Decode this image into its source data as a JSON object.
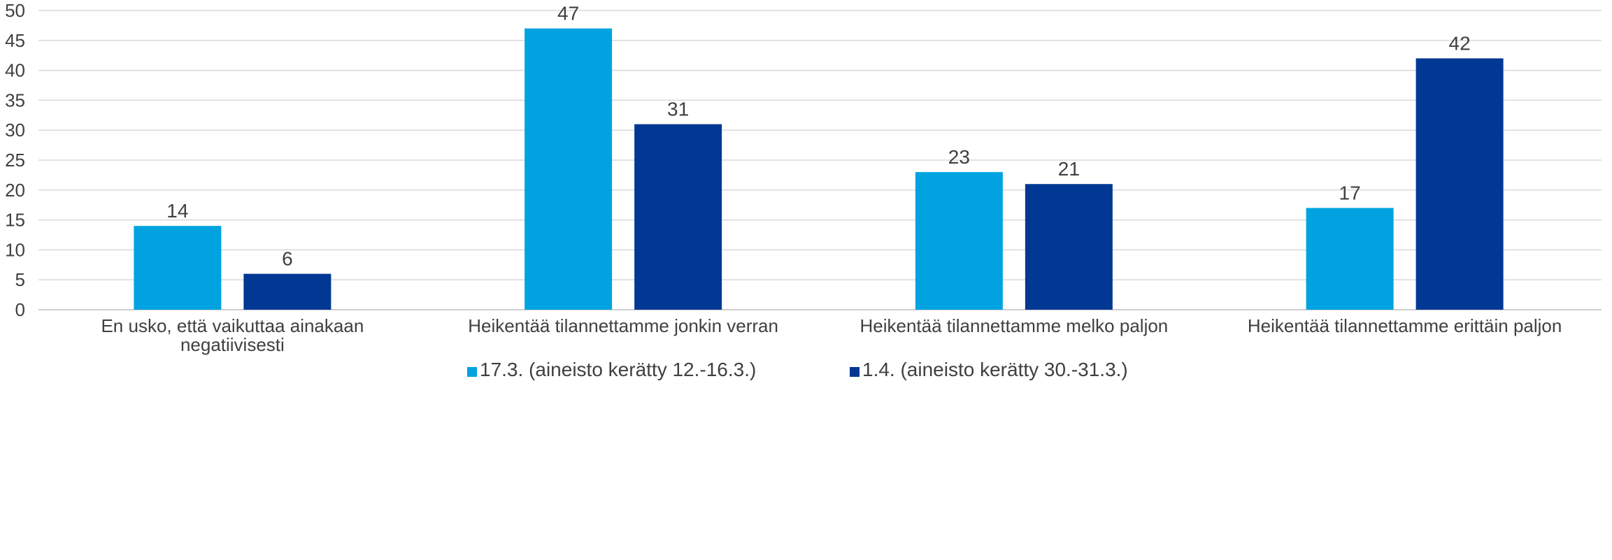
{
  "chart_data": {
    "type": "bar",
    "categories": [
      [
        "En usko, että vaikuttaa ainakaan",
        "negatiivisesti"
      ],
      [
        "Heikentää tilannettamme jonkin verran"
      ],
      [
        "Heikentää tilannettamme melko paljon"
      ],
      [
        "Heikentää tilannettamme erittäin paljon"
      ]
    ],
    "series": [
      {
        "name": "17.3. (aineisto kerätty 12.-16.3.)",
        "color": "#00A3E0",
        "values": [
          14,
          47,
          23,
          17
        ]
      },
      {
        "name": "1.4. (aineisto kerätty 30.-31.3.)",
        "color": "#003893",
        "values": [
          6,
          31,
          21,
          42
        ]
      }
    ],
    "ylim": [
      0,
      50
    ],
    "yticks": [
      0,
      5,
      10,
      15,
      20,
      25,
      30,
      35,
      40,
      45,
      50
    ],
    "grid": true,
    "legend": "bottom-center",
    "title": "",
    "xlabel": "",
    "ylabel": ""
  }
}
